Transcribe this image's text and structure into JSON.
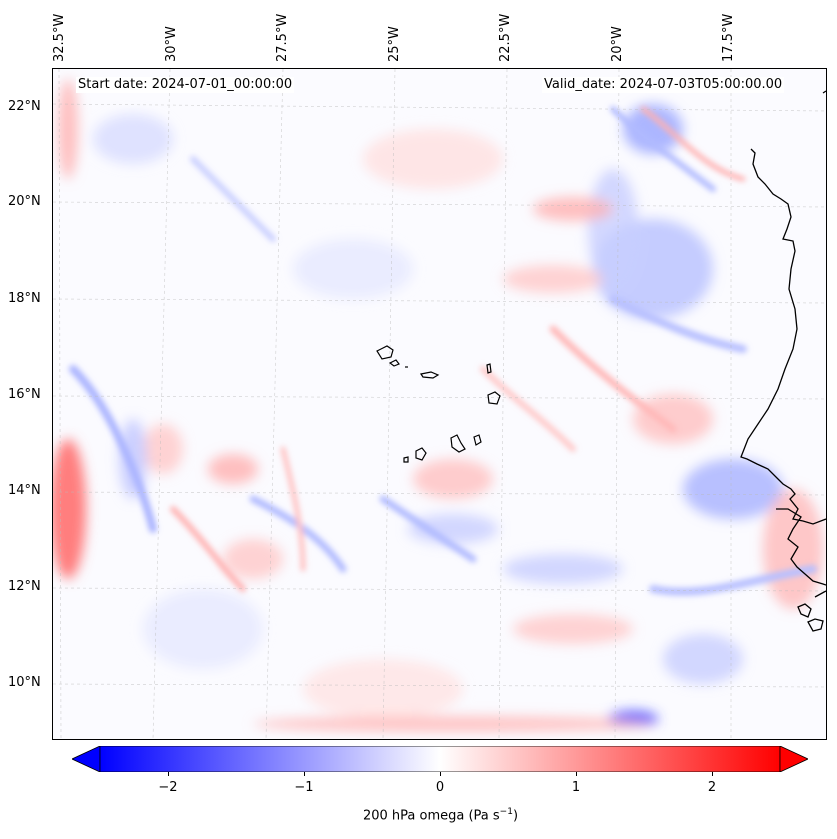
{
  "map": {
    "type": "contour-map",
    "start_date_label": "Start date: 2024-07-01_00:00:00",
    "valid_date_label": "Valid_date: 2024-07-03T05:00:00.00",
    "lat_labels": [
      "22°N",
      "20°N",
      "18°N",
      "16°N",
      "14°N",
      "12°N",
      "10°N"
    ],
    "lon_labels": [
      "32.5°W",
      "30°W",
      "27.5°W",
      "25°W",
      "22.5°W",
      "20°W",
      "17.5°W"
    ],
    "colorbar": {
      "ticks": [
        "−2",
        "−1",
        "0",
        "1",
        "2"
      ],
      "tick_values": [
        -2,
        -1,
        0,
        1,
        2
      ],
      "range": [
        -2.5,
        2.5
      ],
      "label_main": "200 hPa omega (Pa s",
      "label_sup": "−1",
      "label_close": ")",
      "low_color": "#0000ff",
      "mid_color": "#ffffff",
      "high_color": "#ff0000"
    }
  }
}
